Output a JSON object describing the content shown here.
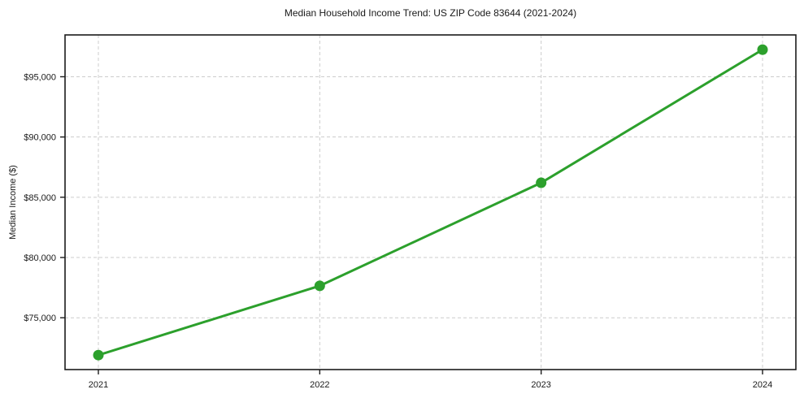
{
  "chart_data": {
    "type": "line",
    "title": "Median Household Income Trend: US ZIP Code 83644 (2021-2024)",
    "xlabel": "",
    "ylabel": "Median Income ($)",
    "categories": [
      "2021",
      "2022",
      "2023",
      "2024"
    ],
    "series": [
      {
        "name": "Median Household Income",
        "values": [
          71900,
          77650,
          86200,
          97250
        ],
        "color": "#2ca02c",
        "marker": "circle",
        "marker_radius": 6.5,
        "line_width": 3
      }
    ],
    "yticks": [
      75000,
      80000,
      85000,
      90000,
      95000
    ],
    "ytick_labels": [
      "$75,000",
      "$80,000",
      "$85,000",
      "$90,000",
      "$95,000"
    ],
    "ylim": [
      70700,
      98470
    ],
    "grid": {
      "show": true,
      "line_style": "dashed",
      "color": "#cccccc"
    },
    "legend_position": "none",
    "axes": {
      "spine_color": "#1c1c1c",
      "tick_color": "#1c1c1c",
      "text_color": "#1a1a1a",
      "background": "#ffffff"
    }
  }
}
